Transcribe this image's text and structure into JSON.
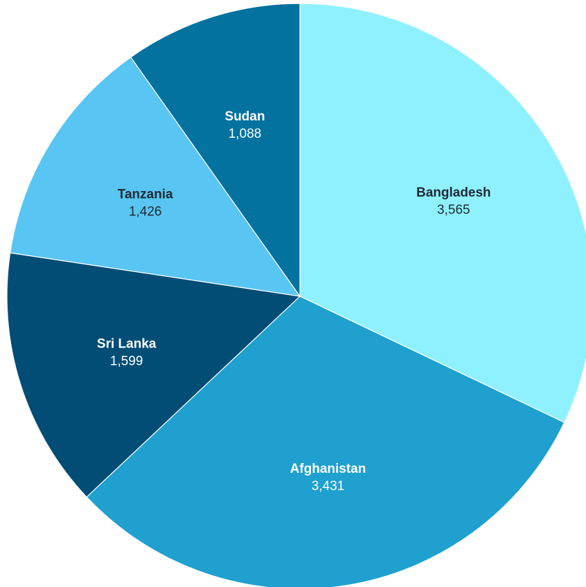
{
  "chart_data": {
    "type": "pie",
    "title": "",
    "start_angle_deg": 0,
    "direction": "clockwise",
    "slices": [
      {
        "label": "Bangladesh",
        "value_text": "3,565",
        "value": 3565,
        "color": "#8ff1ff",
        "text_color": "#1f2a33"
      },
      {
        "label": "Afghanistan",
        "value_text": "3,431",
        "value": 3431,
        "color": "#1fa0cf",
        "text_color": "#ffffff"
      },
      {
        "label": "Sri Lanka",
        "value_text": "1,599",
        "value": 1599,
        "color": "#024d75",
        "text_color": "#ffffff"
      },
      {
        "label": "Tanzania",
        "value_text": "1,426",
        "value": 1426,
        "color": "#59c5f2",
        "text_color": "#1f2a33"
      },
      {
        "label": "Sudan",
        "value_text": "1,088",
        "value": 1088,
        "color": "#03729f",
        "text_color": "#ffffff"
      }
    ]
  }
}
